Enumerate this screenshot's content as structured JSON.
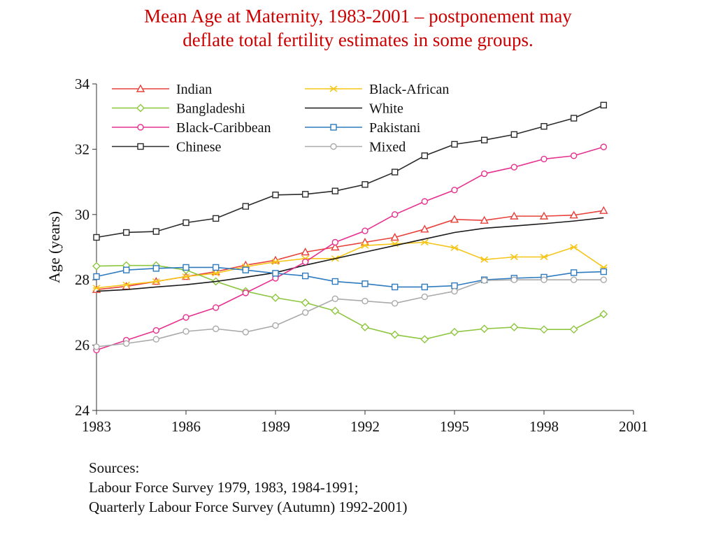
{
  "slide": {
    "title_line1": "Mean Age at Maternity, 1983-2001 – postponement  may",
    "title_line2": "deflate total fertility estimates in some groups."
  },
  "sources": {
    "heading": "Sources:",
    "line1": "Labour Force Survey 1979, 1983, 1984-1991;",
    "line2": "Quarterly Labour Force Survey (Autumn) 1992-2001)"
  },
  "chart_data": {
    "type": "line",
    "title": "",
    "xlabel": "",
    "ylabel": "Age (years)",
    "xlim": [
      1983,
      2001
    ],
    "ylim": [
      24,
      34
    ],
    "xticks": [
      1983,
      1986,
      1989,
      1992,
      1995,
      1998,
      2001
    ],
    "yticks": [
      24,
      26,
      28,
      30,
      32,
      34
    ],
    "legend_position": "top-left, inside plot, two columns",
    "grid": false,
    "x": [
      1983,
      1984,
      1985,
      1986,
      1987,
      1988,
      1989,
      1990,
      1991,
      1992,
      1993,
      1994,
      1995,
      1996,
      1997,
      1998,
      1999,
      2000
    ],
    "series": [
      {
        "name": "Indian",
        "color": "#e8403a",
        "marker": "triangle",
        "values": [
          27.7,
          27.8,
          27.95,
          28.1,
          28.25,
          28.45,
          28.6,
          28.85,
          29.0,
          29.15,
          29.3,
          29.55,
          29.85,
          29.82,
          29.95,
          29.95,
          29.98,
          30.12
        ]
      },
      {
        "name": "Black-African",
        "color": "#f5c518",
        "marker": "x",
        "values": [
          27.75,
          27.85,
          27.95,
          28.1,
          28.2,
          28.4,
          28.55,
          28.65,
          28.65,
          29.05,
          29.1,
          29.15,
          28.98,
          28.62,
          28.7,
          28.7,
          29.0,
          28.38
        ]
      },
      {
        "name": "Bangladeshi",
        "color": "#8dc63f",
        "marker": "diamond",
        "values": [
          28.42,
          28.44,
          28.44,
          28.3,
          27.95,
          27.65,
          27.45,
          27.3,
          27.05,
          26.55,
          26.32,
          26.18,
          26.4,
          26.5,
          26.55,
          26.48,
          26.48,
          26.95
        ]
      },
      {
        "name": "White",
        "color": "#1a1a1a",
        "marker": "none",
        "values": [
          27.65,
          27.7,
          27.78,
          27.85,
          27.95,
          28.08,
          28.22,
          28.45,
          28.65,
          28.85,
          29.05,
          29.25,
          29.45,
          29.58,
          29.65,
          29.72,
          29.8,
          29.9
        ]
      },
      {
        "name": "Black-Caribbean",
        "color": "#e6318e",
        "marker": "circle",
        "values": [
          25.85,
          26.15,
          26.45,
          26.85,
          27.15,
          27.6,
          28.05,
          28.55,
          29.15,
          29.5,
          30.0,
          30.4,
          30.75,
          31.25,
          31.45,
          31.7,
          31.8,
          32.07
        ]
      },
      {
        "name": "Pakistani",
        "color": "#2e7bbf",
        "marker": "square",
        "values": [
          28.1,
          28.3,
          28.35,
          28.38,
          28.38,
          28.3,
          28.2,
          28.12,
          27.95,
          27.88,
          27.78,
          27.78,
          27.82,
          28.0,
          28.05,
          28.08,
          28.22,
          28.25
        ]
      },
      {
        "name": "Chinese",
        "color": "#2b2b2b",
        "marker": "square",
        "values": [
          29.3,
          29.45,
          29.48,
          29.75,
          29.88,
          30.25,
          30.6,
          30.62,
          30.72,
          30.92,
          31.3,
          31.8,
          32.15,
          32.28,
          32.45,
          32.7,
          32.95,
          33.35
        ]
      },
      {
        "name": "Mixed",
        "color": "#aaaaaa",
        "marker": "circle",
        "values": [
          25.95,
          26.05,
          26.18,
          26.42,
          26.5,
          26.4,
          26.6,
          27.0,
          27.42,
          27.35,
          27.28,
          27.48,
          27.65,
          27.98,
          28.0,
          28.0,
          28.0,
          28.0
        ]
      }
    ]
  }
}
